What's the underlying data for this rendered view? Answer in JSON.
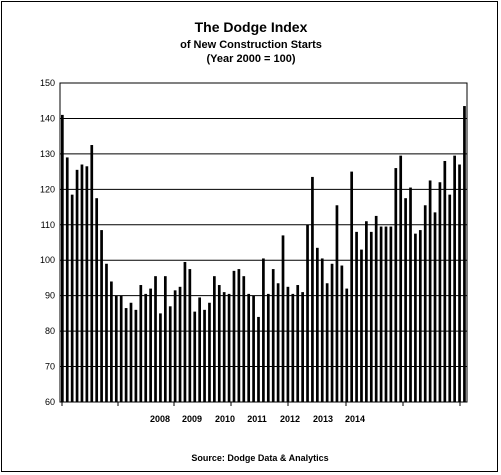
{
  "chart_data": {
    "type": "bar",
    "title": "The Dodge Index",
    "subtitle_line1": "of New Construction Starts",
    "subtitle_line2": "(Year 2000 = 100)",
    "source": "Source:  Dodge Data & Analytics",
    "ylim": [
      60,
      150
    ],
    "yticks": [
      "60",
      "70",
      "80",
      "90",
      "100",
      "110",
      "120",
      "130",
      "140",
      "150"
    ],
    "grid": true,
    "x_tick_labels": [
      "2008",
      "2009",
      "2010",
      "2011",
      "2012",
      "2013",
      "2014"
    ],
    "values": [
      141,
      129,
      118.5,
      125.5,
      127,
      126.5,
      132.5,
      117.5,
      108.5,
      99,
      94,
      90,
      90,
      86.5,
      88,
      86,
      93,
      90.5,
      92,
      95.5,
      85,
      95.5,
      87,
      91.5,
      92.5,
      99.5,
      97.5,
      85.5,
      89.5,
      86,
      88,
      95.5,
      93,
      91,
      90.5,
      97,
      97.5,
      95.5,
      90.5,
      90,
      84,
      100.5,
      90.5,
      97.5,
      93.5,
      107,
      92.5,
      90.5,
      93,
      91,
      110,
      123.5,
      103.5,
      100.5,
      93.5,
      99,
      115.5,
      98.5,
      92,
      125,
      108,
      103,
      111,
      108,
      112.5,
      109.5,
      109.5,
      109.5,
      126,
      129.5,
      117.5,
      120.5,
      107.5,
      108.5,
      115.5,
      122.5,
      113.5,
      122,
      128,
      118.5,
      129.5,
      127,
      143.5
    ]
  }
}
